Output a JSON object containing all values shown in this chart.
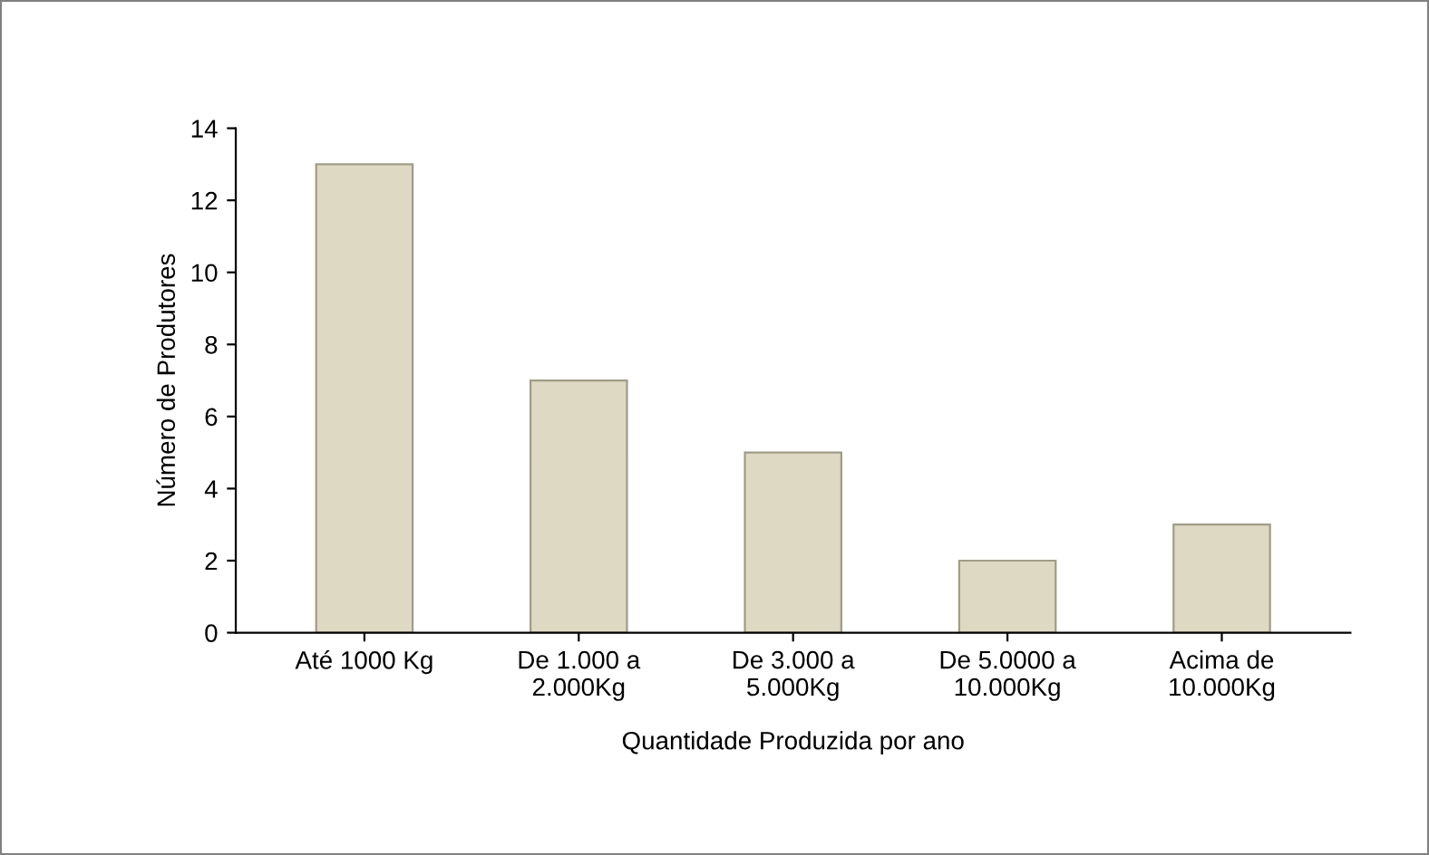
{
  "chart_data": {
    "type": "bar",
    "xlabel": "Quantidade Produzida por ano",
    "ylabel": "Número de Produtores",
    "categories": [
      "Até 1000 Kg",
      "De 1.000 a\n2.000Kg",
      "De 3.000 a\n5.000Kg",
      "De 5.0000 a\n10.000Kg",
      "Acima de\n10.000Kg"
    ],
    "values": [
      13,
      7,
      5,
      2,
      3
    ],
    "color": "#ddd9c3",
    "ylim": [
      0,
      14
    ],
    "yticks": [
      0,
      2,
      4,
      6,
      8,
      10,
      12,
      14
    ],
    "grid": false,
    "legend": false
  }
}
